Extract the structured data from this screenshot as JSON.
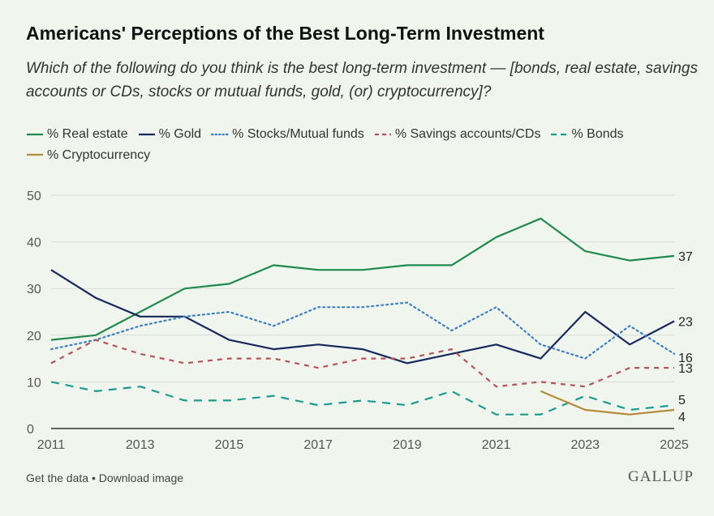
{
  "header": {
    "title": "Americans' Perceptions of the Best Long-Term Investment",
    "subtitle": "Which of the following do you think is the best long-term investment — [bonds, real estate, savings accounts or CDs, stocks or mutual funds, gold, (or) cryptocurrency]?"
  },
  "footer": {
    "get_data": "Get the data",
    "separator": " • ",
    "download": "Download image",
    "brand": "GALLUP"
  },
  "chart_data": {
    "type": "line",
    "title": "Americans' Perceptions of the Best Long-Term Investment",
    "xlabel": "",
    "ylabel": "",
    "ylim": [
      0,
      50
    ],
    "yticks": [
      "0",
      "10",
      "20",
      "30",
      "40",
      "50"
    ],
    "xlim": [
      2011,
      2025
    ],
    "xticks": [
      "2011",
      "2013",
      "2015",
      "2017",
      "2019",
      "2021",
      "2023",
      "2025"
    ],
    "grid": true,
    "legend_position": "top",
    "series": [
      {
        "name": "% Real estate",
        "color": "#1e8a4c",
        "dash": "solid",
        "end_label": "37",
        "x": [
          2011,
          2012,
          2013,
          2014,
          2015,
          2016,
          2017,
          2018,
          2019,
          2020,
          2021,
          2022,
          2023,
          2024,
          2025
        ],
        "values": [
          19,
          20,
          25,
          30,
          31,
          35,
          34,
          34,
          35,
          35,
          41,
          45,
          38,
          36,
          37
        ]
      },
      {
        "name": "% Gold",
        "color": "#17285e",
        "dash": "solid",
        "end_label": "23",
        "x": [
          2011,
          2012,
          2013,
          2014,
          2015,
          2016,
          2017,
          2018,
          2019,
          2020,
          2021,
          2022,
          2023,
          2024,
          2025
        ],
        "values": [
          34,
          28,
          24,
          24,
          19,
          17,
          18,
          17,
          14,
          16,
          18,
          15,
          25,
          18,
          23
        ]
      },
      {
        "name": "% Stocks/Mutual funds",
        "color": "#3a7fc4",
        "dash": "dotted",
        "end_label": "16",
        "x": [
          2011,
          2012,
          2013,
          2014,
          2015,
          2016,
          2017,
          2018,
          2019,
          2020,
          2021,
          2022,
          2023,
          2024,
          2025
        ],
        "values": [
          17,
          19,
          22,
          24,
          25,
          22,
          26,
          26,
          27,
          21,
          26,
          18,
          15,
          22,
          16
        ]
      },
      {
        "name": "% Savings accounts/CDs",
        "color": "#b5555a",
        "dash": "dashed",
        "end_label": "13",
        "x": [
          2011,
          2012,
          2013,
          2014,
          2015,
          2016,
          2017,
          2018,
          2019,
          2020,
          2021,
          2022,
          2023,
          2024,
          2025
        ],
        "values": [
          14,
          19,
          16,
          14,
          15,
          15,
          13,
          15,
          15,
          17,
          9,
          10,
          9,
          13,
          13
        ]
      },
      {
        "name": "% Bonds",
        "color": "#1a9b8f",
        "dash": "longdash",
        "end_label": "5",
        "x": [
          2011,
          2012,
          2013,
          2014,
          2015,
          2016,
          2017,
          2018,
          2019,
          2020,
          2021,
          2022,
          2023,
          2024,
          2025
        ],
        "values": [
          10,
          8,
          9,
          6,
          6,
          7,
          5,
          6,
          5,
          8,
          3,
          3,
          7,
          4,
          5
        ]
      },
      {
        "name": "% Cryptocurrency",
        "color": "#b58a3a",
        "dash": "solid",
        "end_label": "4",
        "x": [
          2022,
          2023,
          2024,
          2025
        ],
        "values": [
          8,
          4,
          3,
          4
        ]
      }
    ]
  }
}
